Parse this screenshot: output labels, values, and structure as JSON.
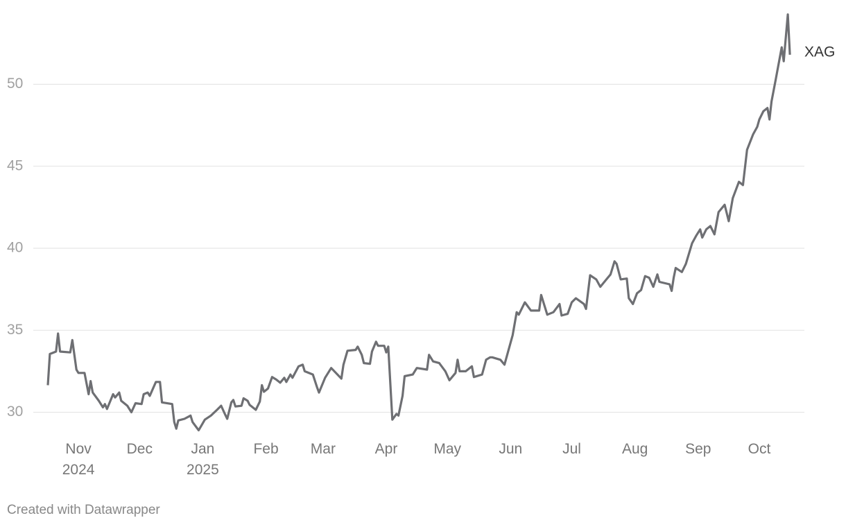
{
  "chart_data": {
    "type": "line",
    "footer": "Created with Datawrapper",
    "x": [
      0,
      1,
      4,
      5,
      6,
      11,
      12,
      14,
      15,
      18,
      20,
      21,
      22,
      25,
      27,
      28,
      29,
      32,
      33,
      35,
      36,
      39,
      41,
      43,
      46,
      47,
      49,
      50,
      53,
      55,
      56,
      61,
      62,
      63,
      64,
      67,
      70,
      71,
      74,
      77,
      80,
      83,
      85,
      87,
      88,
      90,
      91,
      92,
      95,
      96,
      98,
      99,
      102,
      104,
      105,
      106,
      108,
      110,
      112,
      114,
      116,
      117,
      119,
      120,
      123,
      125,
      126,
      130,
      132,
      133,
      136,
      139,
      144,
      145,
      147,
      151,
      152,
      154,
      155,
      158,
      159,
      161,
      162,
      165,
      166,
      167,
      169,
      171,
      172,
      174,
      175,
      179,
      181,
      186,
      187,
      189,
      192,
      195,
      197,
      200,
      201,
      202,
      205,
      208,
      209,
      213,
      215,
      217,
      218,
      222,
      224,
      228,
      230,
      231,
      234,
      237,
      241,
      242,
      245,
      248,
      251,
      252,
      255,
      257,
      259,
      263,
      264,
      266,
      269,
      271,
      274,
      276,
      278,
      279,
      281,
      284,
      285,
      287,
      289,
      291,
      293,
      295,
      297,
      299,
      300,
      305,
      306,
      307,
      308,
      311,
      313,
      316,
      318,
      320,
      321,
      323,
      325,
      327,
      329,
      332,
      334,
      336,
      339,
      341,
      343,
      346,
      348,
      349,
      351,
      353,
      354,
      355,
      357,
      360,
      361,
      363,
      364
    ],
    "series": [
      {
        "name": "XAG",
        "color": "#6e6f73",
        "values": [
          31.65,
          33.55,
          33.7,
          34.8,
          33.7,
          33.65,
          34.4,
          32.6,
          32.4,
          32.4,
          31.1,
          31.9,
          31.2,
          30.7,
          30.3,
          30.5,
          30.2,
          31.1,
          30.9,
          31.2,
          30.7,
          30.4,
          30.0,
          30.55,
          30.5,
          31.1,
          31.2,
          31.0,
          31.85,
          31.85,
          30.6,
          30.5,
          29.4,
          29.0,
          29.5,
          29.6,
          29.8,
          29.4,
          28.9,
          29.55,
          29.8,
          30.15,
          30.4,
          29.85,
          29.6,
          30.6,
          30.75,
          30.35,
          30.4,
          30.85,
          30.7,
          30.45,
          30.15,
          30.65,
          31.65,
          31.25,
          31.45,
          32.15,
          32.0,
          31.8,
          32.1,
          31.85,
          32.3,
          32.1,
          32.8,
          32.9,
          32.5,
          32.3,
          31.55,
          31.2,
          32.1,
          32.7,
          32.05,
          32.9,
          33.75,
          33.8,
          34.0,
          33.5,
          33.0,
          32.95,
          33.7,
          34.3,
          34.05,
          34.05,
          33.65,
          34.0,
          29.55,
          29.9,
          29.8,
          31.0,
          32.2,
          32.3,
          32.7,
          32.6,
          33.5,
          33.1,
          33.0,
          32.5,
          31.95,
          32.4,
          33.2,
          32.5,
          32.5,
          32.8,
          32.15,
          32.3,
          33.2,
          33.35,
          33.35,
          33.2,
          32.9,
          34.7,
          36.1,
          35.95,
          36.7,
          36.2,
          36.2,
          37.15,
          35.95,
          36.1,
          36.6,
          35.9,
          36.0,
          36.7,
          36.95,
          36.6,
          36.3,
          38.35,
          38.1,
          37.65,
          38.1,
          38.4,
          39.2,
          39.05,
          38.1,
          38.15,
          36.95,
          36.6,
          37.25,
          37.45,
          38.3,
          38.2,
          37.65,
          38.4,
          37.95,
          37.8,
          37.4,
          38.2,
          38.8,
          38.55,
          39.05,
          40.3,
          40.75,
          41.15,
          40.65,
          41.15,
          41.35,
          40.85,
          42.2,
          42.65,
          41.65,
          43.05,
          44.05,
          43.85,
          46.0,
          46.95,
          47.4,
          47.85,
          48.35,
          48.55,
          47.85,
          48.95,
          50.25,
          52.25,
          51.4,
          54.25,
          51.8
        ]
      }
    ],
    "xlim": [
      0,
      365
    ],
    "xticks": [
      {
        "value": 15,
        "label": "Nov\n2024"
      },
      {
        "value": 45,
        "label": "Dec"
      },
      {
        "value": 76,
        "label": "Jan\n2025"
      },
      {
        "value": 107,
        "label": "Feb"
      },
      {
        "value": 135,
        "label": "Mar"
      },
      {
        "value": 166,
        "label": "Apr"
      },
      {
        "value": 196,
        "label": "May"
      },
      {
        "value": 227,
        "label": "Jun"
      },
      {
        "value": 257,
        "label": "Jul"
      },
      {
        "value": 288,
        "label": "Aug"
      },
      {
        "value": 319,
        "label": "Sep"
      },
      {
        "value": 349,
        "label": "Oct"
      }
    ],
    "ylim": [
      28.5,
      54.5
    ],
    "yticks": [
      30,
      35,
      40,
      45,
      50
    ],
    "grid": true
  }
}
